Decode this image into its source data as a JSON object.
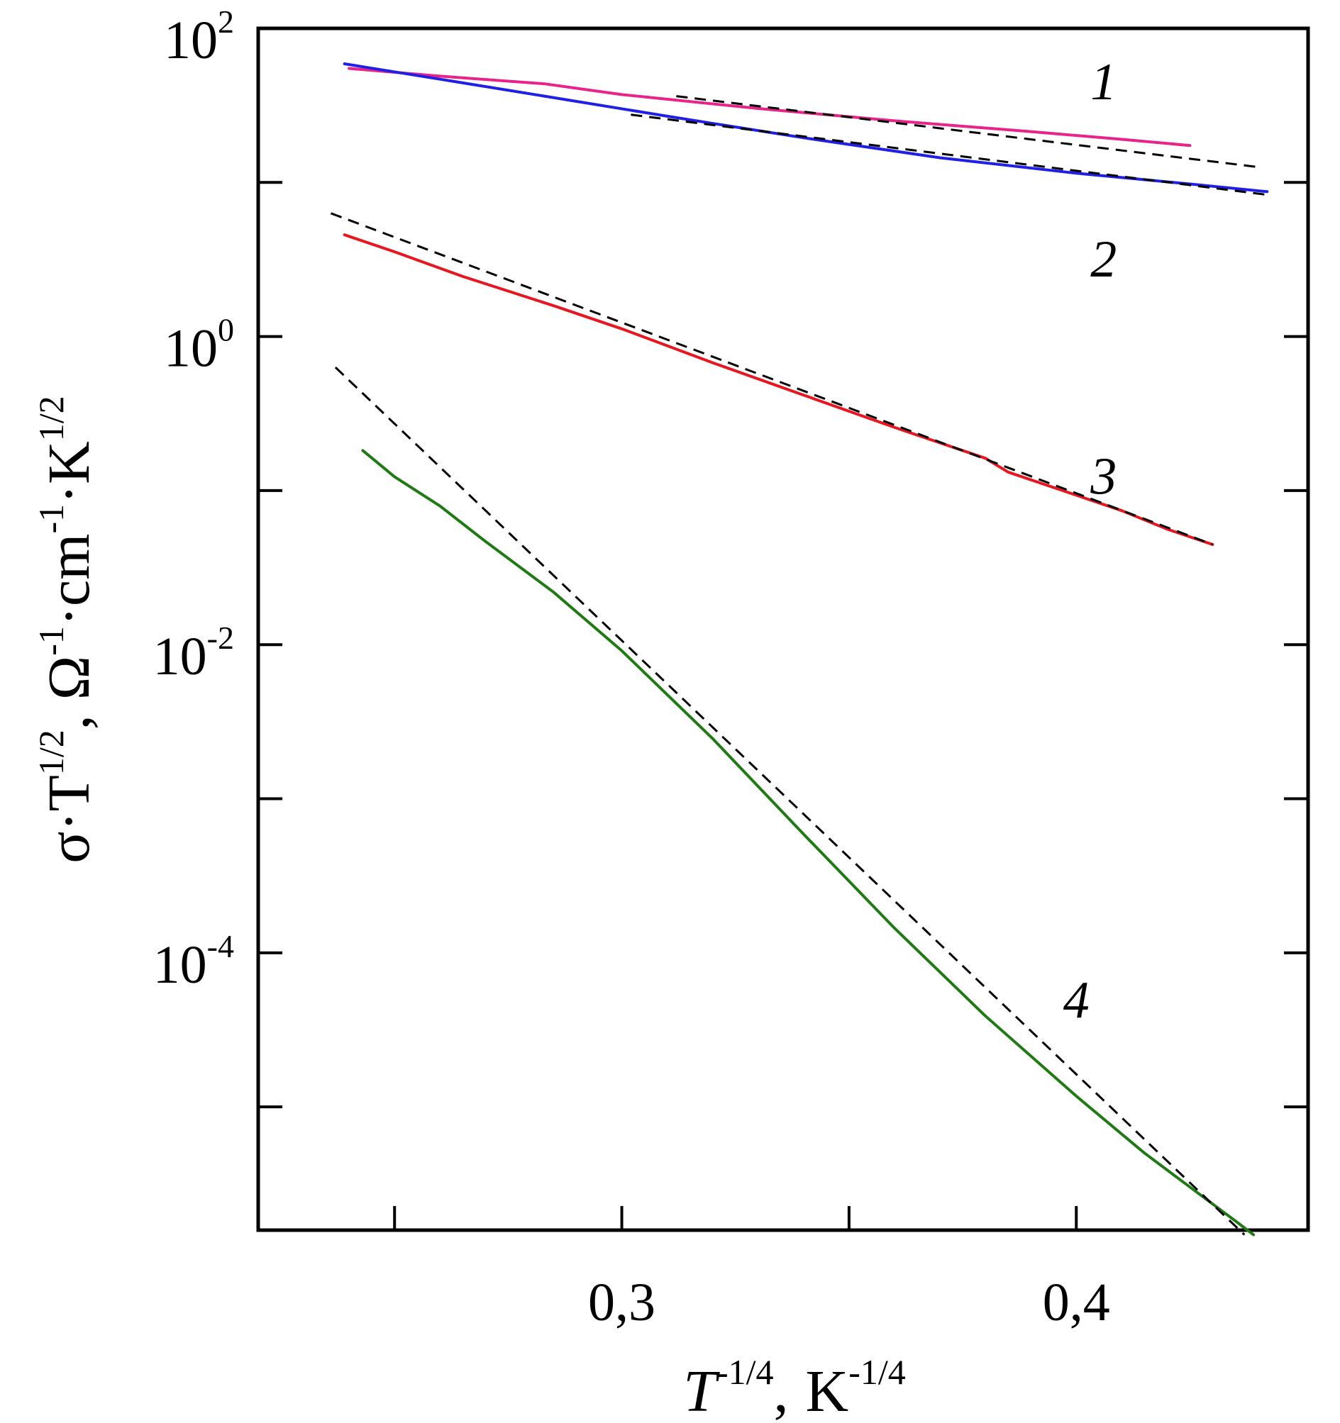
{
  "chart_data": {
    "type": "line",
    "xlabel": {
      "base": "T",
      "exponent": "-1/4",
      "sep": ",",
      "unit": "K",
      "unit_exponent": "-1/4"
    },
    "ylabel": {
      "main": "σ·T",
      "exp1": "1/2",
      "part2": ", Ω",
      "exp2": "-1",
      "part3": "·cm",
      "exp3": "-1",
      "part4": "·K",
      "exp4": "1/2"
    },
    "xlim": [
      0.22,
      0.451
    ],
    "ylim_log10": [
      -5.8,
      2
    ],
    "y_scale": "log",
    "grid": false,
    "x_major_ticks": [
      {
        "value": 0.3,
        "label": "0,3"
      },
      {
        "value": 0.4,
        "label": "0,4"
      }
    ],
    "x_minor_ticks": [
      0.25,
      0.35
    ],
    "y_major_ticks": [
      {
        "log10": 2,
        "base": "10",
        "exp": "2"
      },
      {
        "log10": 0,
        "base": "10",
        "exp": "0"
      },
      {
        "log10": -2,
        "base": "10",
        "exp": "-2"
      },
      {
        "log10": -4,
        "base": "10",
        "exp": "-4"
      }
    ],
    "y_minor_ticks_log10": [
      1,
      -1,
      -3,
      -5
    ],
    "series": [
      {
        "id": "c1",
        "color": "#e8238a",
        "style": "solid",
        "points": [
          [
            0.24,
            1.74
          ],
          [
            0.26,
            1.69
          ],
          [
            0.283,
            1.64
          ],
          [
            0.3,
            1.57
          ],
          [
            0.33,
            1.48
          ],
          [
            0.36,
            1.4
          ],
          [
            0.39,
            1.33
          ],
          [
            0.41,
            1.28
          ],
          [
            0.425,
            1.24
          ]
        ]
      },
      {
        "id": "c2",
        "color": "#1f1fe6",
        "style": "solid",
        "points": [
          [
            0.239,
            1.77
          ],
          [
            0.26,
            1.67
          ],
          [
            0.283,
            1.56
          ],
          [
            0.31,
            1.43
          ],
          [
            0.34,
            1.29
          ],
          [
            0.37,
            1.16
          ],
          [
            0.4,
            1.06
          ],
          [
            0.425,
            0.99
          ],
          [
            0.442,
            0.94
          ]
        ]
      },
      {
        "id": "c3",
        "color": "#e8161e",
        "style": "solid",
        "points": [
          [
            0.239,
            0.66
          ],
          [
            0.25,
            0.55
          ],
          [
            0.265,
            0.39
          ],
          [
            0.285,
            0.2
          ],
          [
            0.3,
            0.05
          ],
          [
            0.32,
            -0.17
          ],
          [
            0.34,
            -0.38
          ],
          [
            0.36,
            -0.59
          ],
          [
            0.38,
            -0.79
          ],
          [
            0.385,
            -0.88
          ],
          [
            0.4,
            -1.03
          ],
          [
            0.41,
            -1.13
          ],
          [
            0.42,
            -1.25
          ],
          [
            0.43,
            -1.35
          ]
        ]
      },
      {
        "id": "c4",
        "color": "#1f7a14",
        "style": "solid",
        "points": [
          [
            0.243,
            -0.74
          ],
          [
            0.25,
            -0.91
          ],
          [
            0.26,
            -1.1
          ],
          [
            0.27,
            -1.33
          ],
          [
            0.285,
            -1.66
          ],
          [
            0.3,
            -2.04
          ],
          [
            0.32,
            -2.61
          ],
          [
            0.34,
            -3.23
          ],
          [
            0.36,
            -3.84
          ],
          [
            0.38,
            -4.41
          ],
          [
            0.4,
            -4.93
          ],
          [
            0.415,
            -5.3
          ],
          [
            0.425,
            -5.52
          ],
          [
            0.435,
            -5.74
          ],
          [
            0.439,
            -5.83
          ]
        ]
      },
      {
        "id": "d1",
        "color": "#000000",
        "style": "dashed",
        "points": [
          [
            0.312,
            1.56
          ],
          [
            0.44,
            1.1
          ]
        ]
      },
      {
        "id": "d2",
        "color": "#000000",
        "style": "dashed",
        "points": [
          [
            0.302,
            1.44
          ],
          [
            0.442,
            0.92
          ]
        ]
      },
      {
        "id": "d3",
        "color": "#000000",
        "style": "dashed",
        "points": [
          [
            0.236,
            0.8
          ],
          [
            0.43,
            -1.35
          ]
        ]
      },
      {
        "id": "d4",
        "color": "#000000",
        "style": "dashed",
        "points": [
          [
            0.237,
            -0.2
          ],
          [
            0.437,
            -5.83
          ]
        ]
      }
    ],
    "annotations": [
      {
        "text": "1",
        "x": 0.406,
        "log10y": 1.54
      },
      {
        "text": "2",
        "x": 0.406,
        "log10y": 0.39
      },
      {
        "text": "3",
        "x": 0.406,
        "log10y": -1.02
      },
      {
        "text": "4",
        "x": 0.4,
        "log10y": -4.42
      }
    ]
  }
}
